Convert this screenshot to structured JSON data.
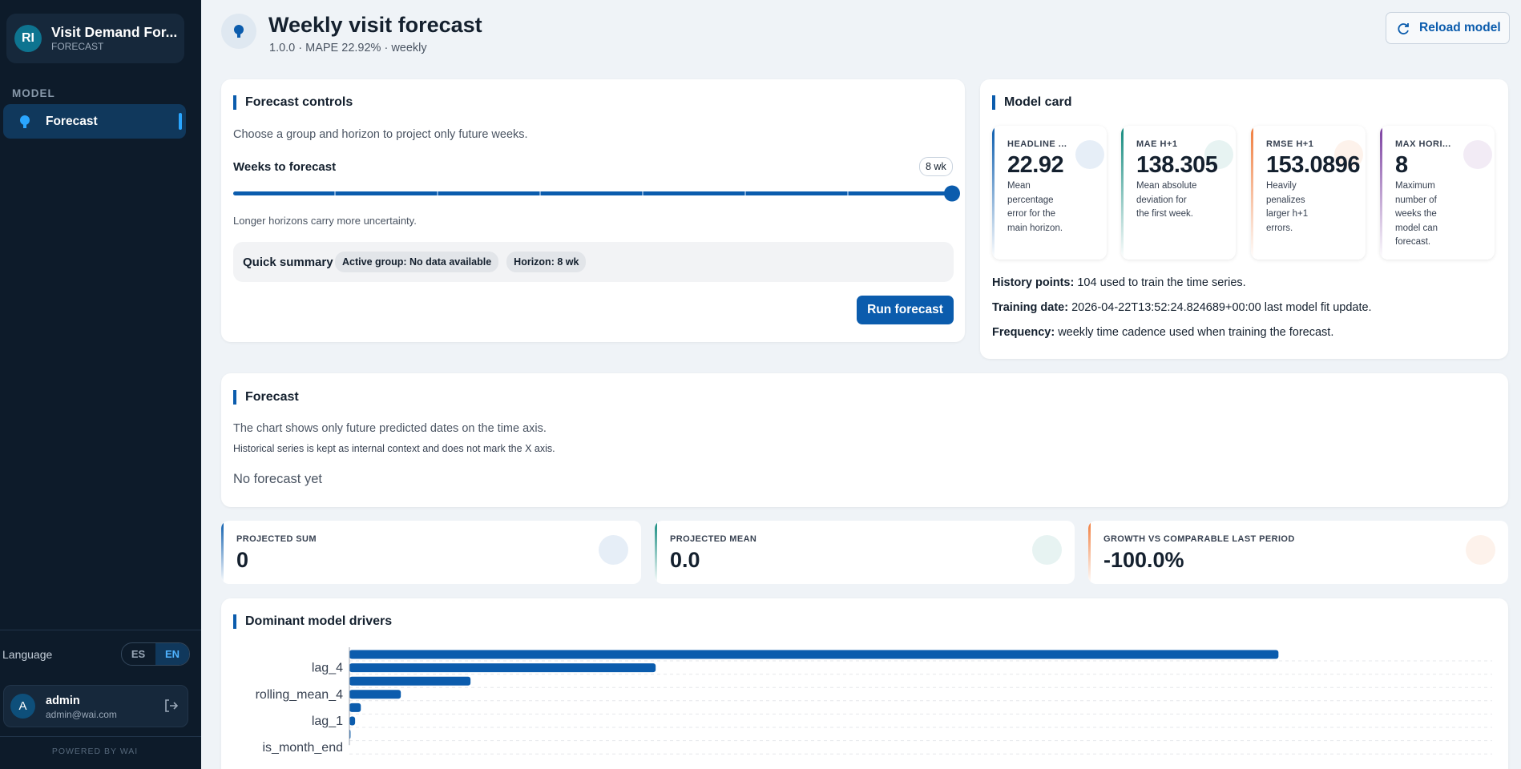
{
  "sidebar": {
    "avatar": "RI",
    "app_title": "Visit Demand For...",
    "app_subtitle": "FORECAST",
    "section": "MODEL",
    "nav": [
      "Forecast"
    ],
    "language_label": "Language",
    "languages": [
      "ES",
      "EN"
    ],
    "user": {
      "avatar": "A",
      "name": "admin",
      "email": "admin@wai.com"
    },
    "footer": "POWERED BY WAI"
  },
  "header": {
    "title": "Weekly visit forecast",
    "subtitle": "1.0.0 · MAPE 22.92% · weekly",
    "reload_button": "Reload model"
  },
  "controls": {
    "title": "Forecast controls",
    "description": "Choose a group and horizon to project only future weeks.",
    "slider_label": "Weeks to forecast",
    "slider_value_label": "8 wk",
    "hint": "Longer horizons carry more uncertainty.",
    "summary_label": "Quick summary",
    "chips": [
      "Active group: No data available",
      "Horizon: 8 wk"
    ],
    "run_button": "Run forecast"
  },
  "model_card": {
    "title": "Model card",
    "metrics": [
      {
        "label": "HEADLINE ...",
        "value": "22.92",
        "description": "Mean percentage error for the main horizon.",
        "color": "#0b5cad"
      },
      {
        "label": "MAE H+1",
        "value": "138.305",
        "description": "Mean absolute deviation for the first week.",
        "color": "#138a7e"
      },
      {
        "label": "RMSE H+1",
        "value": "153.0896",
        "description": "Heavily penalizes larger h+1 errors.",
        "color": "#f07c3c"
      },
      {
        "label": "MAX HORI...",
        "value": "8",
        "description": "Maximum number of weeks the model can forecast.",
        "color": "#7b3fa0"
      }
    ],
    "details": [
      {
        "label": "History points:",
        "text": "104 used to train the time series."
      },
      {
        "label": "Training date:",
        "text": "2026-04-22T13:52:24.824689+00:00 last model fit update."
      },
      {
        "label": "Frequency:",
        "text": "weekly time cadence used when training the forecast."
      }
    ]
  },
  "forecast": {
    "title": "Forecast",
    "description": "The chart shows only future predicted dates on the time axis.",
    "note": "Historical series is kept as internal context and does not mark the X axis.",
    "empty": "No forecast yet"
  },
  "kpis": [
    {
      "label": "PROJECTED SUM",
      "value": "0",
      "color": "#0b5cad"
    },
    {
      "label": "PROJECTED MEAN",
      "value": "0.0",
      "color": "#138a7e"
    },
    {
      "label": "GROWTH VS COMPARABLE LAST PERIOD",
      "value": "-100.0%",
      "color": "#f07c3c"
    }
  ],
  "chart_data": {
    "type": "bar",
    "orientation": "horizontal",
    "title": "Dominant model drivers",
    "categories": [
      null,
      "lag_4",
      null,
      "rolling_mean_4",
      null,
      "lag_1",
      null,
      "is_month_end"
    ],
    "values": [
      0.813,
      0.268,
      0.106,
      0.045,
      0.01,
      0.005,
      0.001,
      0
    ],
    "color": "#0b5cad",
    "xlim": [
      0,
      1
    ]
  }
}
